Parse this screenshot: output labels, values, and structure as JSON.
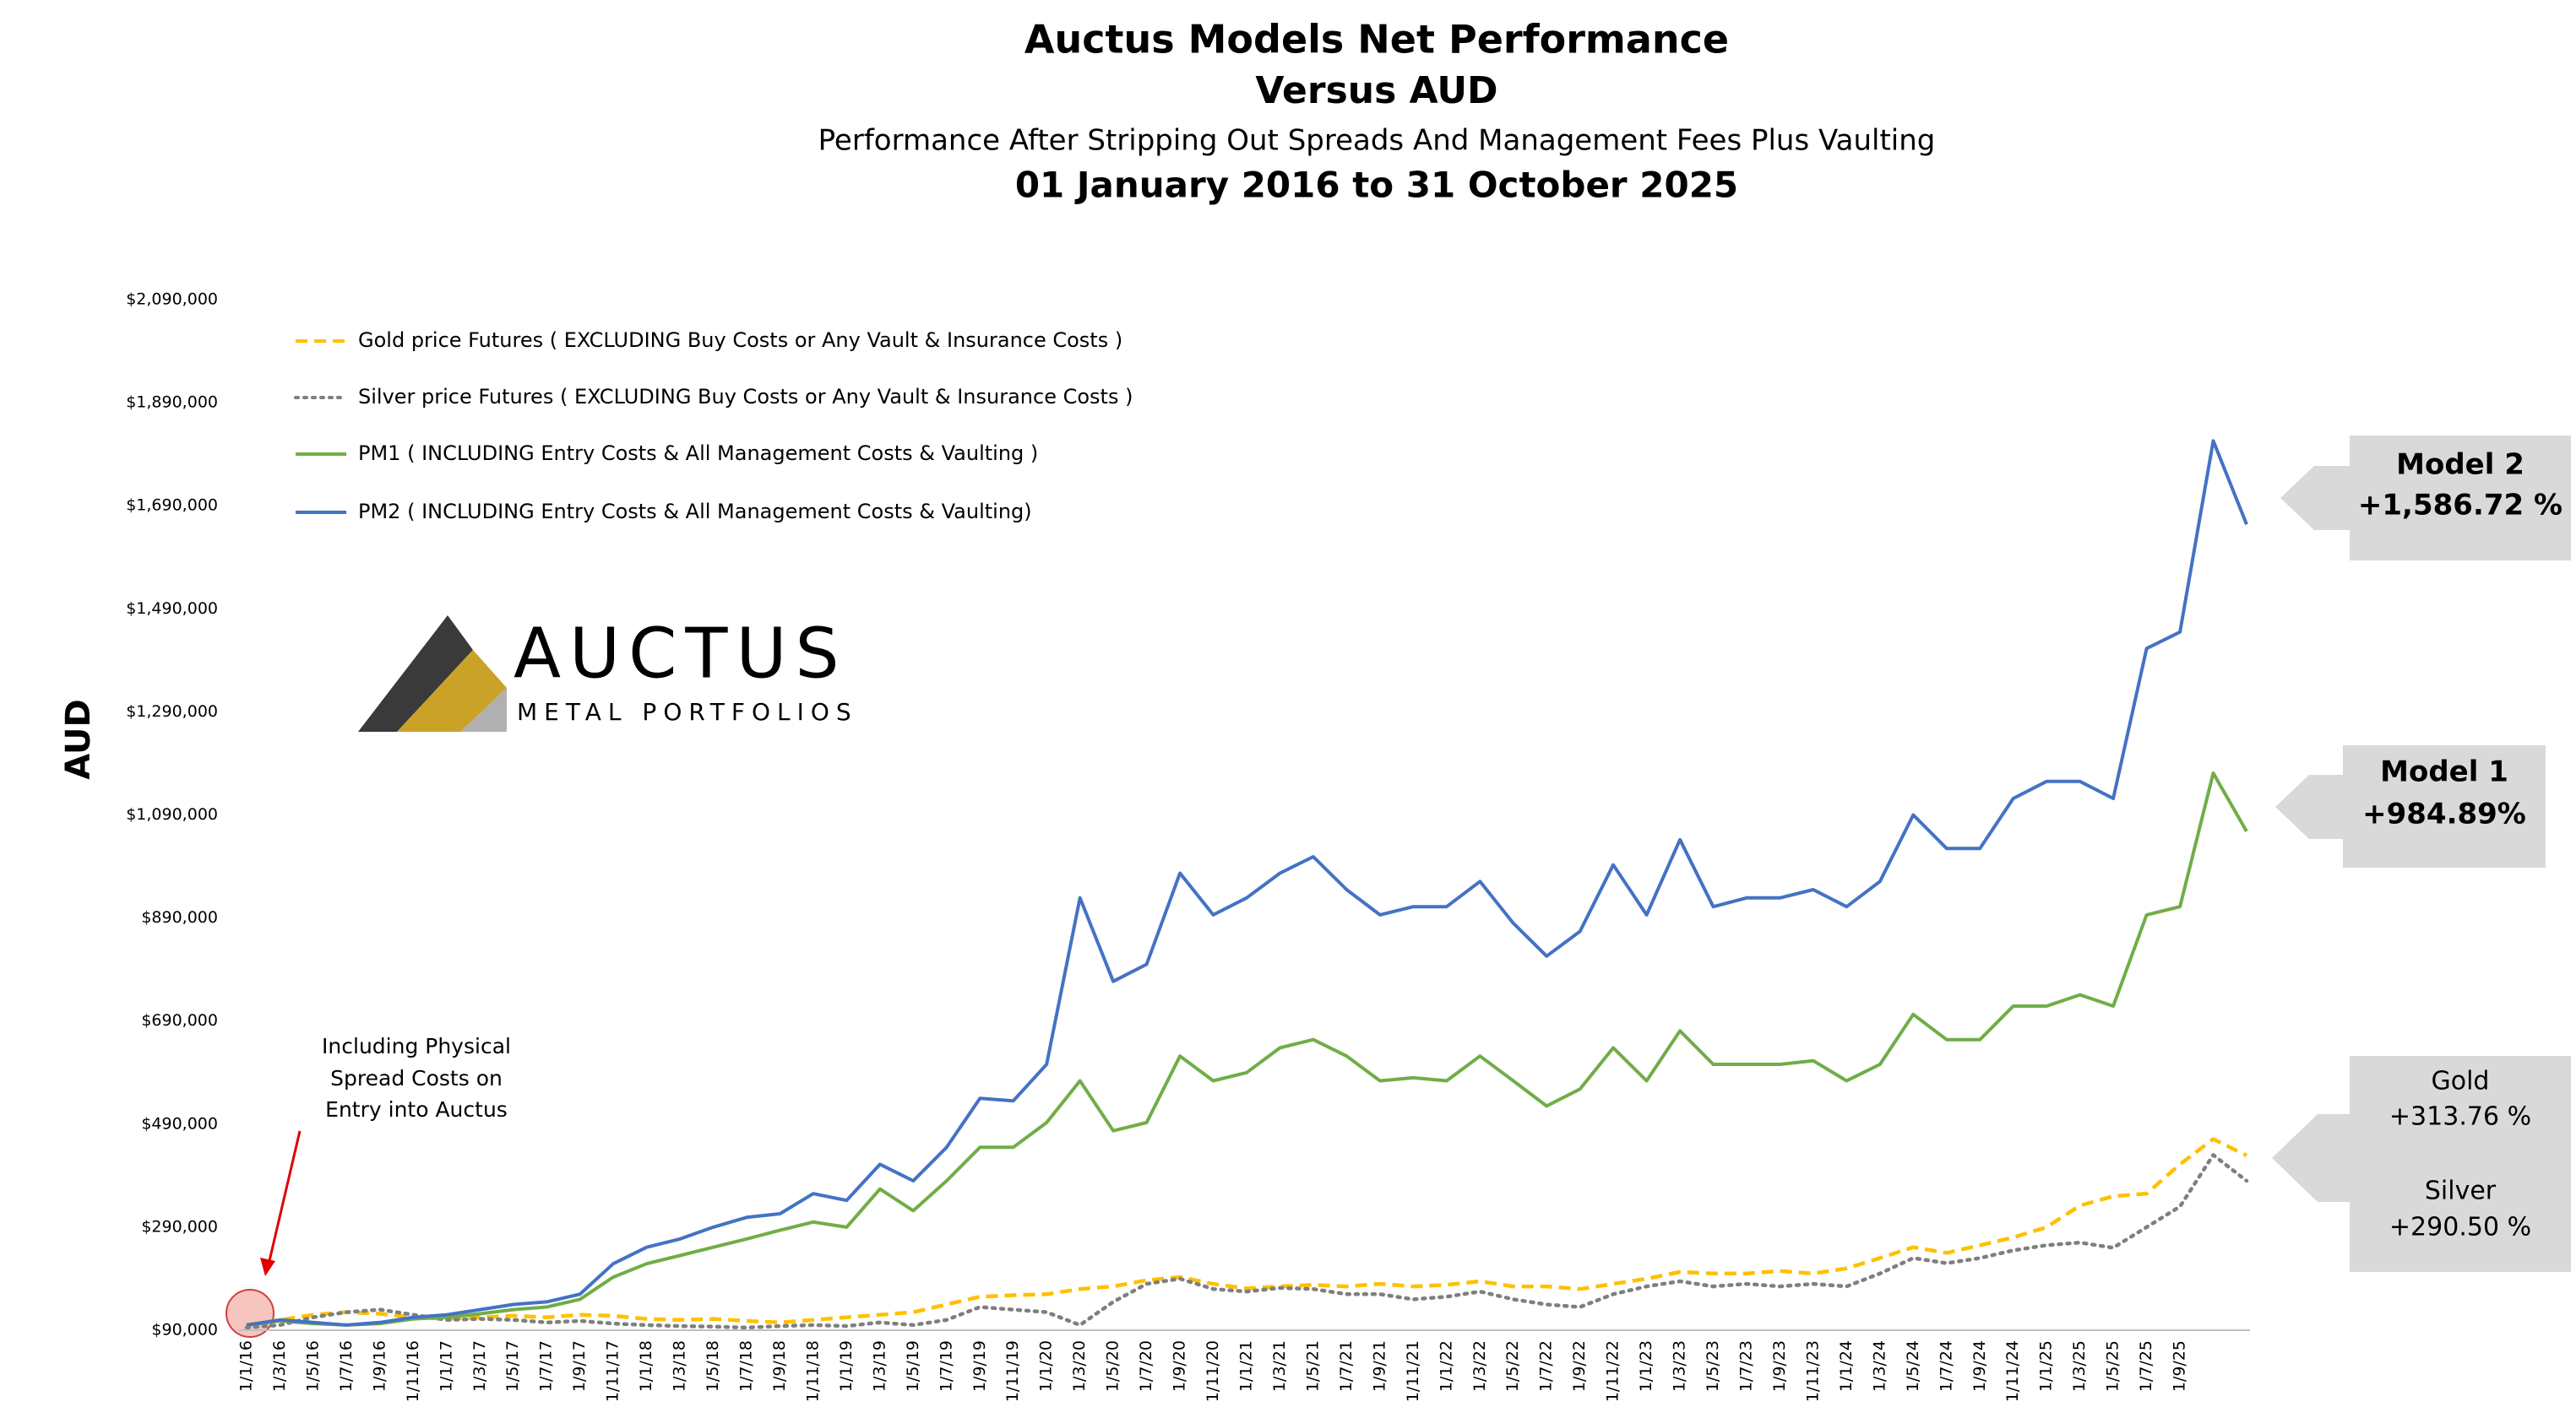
{
  "chart_data": {
    "type": "line",
    "title": "Auctus Models Net Performance",
    "subtitle_1": "Versus AUD",
    "subtitle_2": "Performance After Stripping Out Spreads And Management Fees Plus Vaulting",
    "date_range": "01 January 2016 to 31 October 2025",
    "y_label": "AUD",
    "ylim": [
      90000,
      2090000
    ],
    "yticks": [
      {
        "value": 90000,
        "label": "$90,000"
      },
      {
        "value": 290000,
        "label": "$290,000"
      },
      {
        "value": 490000,
        "label": "$490,000"
      },
      {
        "value": 690000,
        "label": "$690,000"
      },
      {
        "value": 890000,
        "label": "$890,000"
      },
      {
        "value": 1090000,
        "label": "$1,090,000"
      },
      {
        "value": 1290000,
        "label": "$1,290,000"
      },
      {
        "value": 1490000,
        "label": "$1,490,000"
      },
      {
        "value": 1690000,
        "label": "$1,690,000"
      },
      {
        "value": 1890000,
        "label": "$1,890,000"
      },
      {
        "value": 2090000,
        "label": "$2,090,000"
      }
    ],
    "grid": false,
    "categories": [
      "1/1/16",
      "1/3/16",
      "1/5/16",
      "1/7/16",
      "1/9/16",
      "1/11/16",
      "1/1/17",
      "1/3/17",
      "1/5/17",
      "1/7/17",
      "1/9/17",
      "1/11/17",
      "1/1/18",
      "1/3/18",
      "1/5/18",
      "1/7/18",
      "1/9/18",
      "1/11/18",
      "1/1/19",
      "1/3/19",
      "1/5/19",
      "1/7/19",
      "1/9/19",
      "1/11/19",
      "1/1/20",
      "1/3/20",
      "1/5/20",
      "1/7/20",
      "1/9/20",
      "1/11/20",
      "1/1/21",
      "1/3/21",
      "1/5/21",
      "1/7/21",
      "1/9/21",
      "1/11/21",
      "1/1/22",
      "1/3/22",
      "1/5/22",
      "1/7/22",
      "1/9/22",
      "1/11/22",
      "1/1/23",
      "1/3/23",
      "1/5/23",
      "1/7/23",
      "1/9/23",
      "1/11/23",
      "1/1/24",
      "1/3/24",
      "1/5/24",
      "1/7/24",
      "1/9/24",
      "1/11/24",
      "1/1/25",
      "1/3/25",
      "1/5/25",
      "1/7/25",
      "1/9/25",
      null,
      null
    ],
    "series": [
      {
        "name": "Gold price Futures ( EXCLUDING Buy Costs or Any Vault & Insurance Costs )",
        "color": "#ffc000",
        "line_style": "dashed",
        "values": [
          100000,
          110000,
          120000,
          125000,
          122000,
          115000,
          112000,
          115000,
          118000,
          115000,
          120000,
          118000,
          112000,
          110000,
          112000,
          108000,
          105000,
          110000,
          115000,
          120000,
          125000,
          140000,
          155000,
          158000,
          160000,
          170000,
          175000,
          187000,
          193000,
          180000,
          171000,
          175000,
          178000,
          175000,
          180000,
          175000,
          178000,
          185000,
          175000,
          175000,
          170000,
          180000,
          190000,
          203000,
          200000,
          200000,
          205000,
          200000,
          210000,
          230000,
          251000,
          240000,
          255000,
          270000,
          290000,
          332000,
          350000,
          355000,
          412000,
          461000,
          429000
        ]
      },
      {
        "name": "Silver price Futures ( EXCLUDING Buy Costs or Any Vault & Insurance Costs )",
        "color": "#7f7f7f",
        "line_style": "dotted",
        "values": [
          95000,
          100000,
          115000,
          125000,
          130000,
          120000,
          110000,
          112000,
          110000,
          105000,
          108000,
          103000,
          100000,
          98000,
          97000,
          95000,
          98000,
          100000,
          98000,
          105000,
          100000,
          110000,
          135000,
          130000,
          125000,
          100000,
          145000,
          180000,
          190000,
          170000,
          165000,
          172000,
          170000,
          160000,
          160000,
          150000,
          155000,
          165000,
          150000,
          140000,
          135000,
          160000,
          175000,
          185000,
          175000,
          180000,
          175000,
          180000,
          175000,
          200000,
          230000,
          220000,
          230000,
          245000,
          255000,
          260000,
          250000,
          290000,
          330000,
          430000,
          380000
        ]
      },
      {
        "name": "PM1 ( INCLUDING Entry Costs & All Management Costs & Vaulting )",
        "color": "#70ad47",
        "line_style": "solid",
        "values": [
          100000,
          108000,
          103000,
          100000,
          103000,
          112000,
          115000,
          122000,
          130000,
          135000,
          150000,
          193000,
          219000,
          235000,
          251000,
          267000,
          284000,
          300000,
          290000,
          364000,
          322000,
          380000,
          445000,
          445000,
          493000,
          574000,
          477000,
          493000,
          622000,
          574000,
          590000,
          638000,
          654000,
          622000,
          574000,
          580000,
          574000,
          622000,
          574000,
          525000,
          558000,
          638000,
          574000,
          671000,
          606000,
          606000,
          606000,
          613000,
          574000,
          606000,
          703000,
          654000,
          654000,
          719000,
          719000,
          741000,
          719000,
          896000,
          912000,
          1171000,
          1058000
        ]
      },
      {
        "name": "PM2 ( INCLUDING Entry Costs & All Management Costs & Vaulting)",
        "color": "#4472c4",
        "line_style": "solid",
        "values": [
          100000,
          110000,
          105000,
          100000,
          105000,
          115000,
          120000,
          130000,
          140000,
          145000,
          160000,
          219000,
          251000,
          267000,
          290000,
          309000,
          316000,
          355000,
          342000,
          412000,
          380000,
          445000,
          540000,
          535000,
          606000,
          929000,
          767000,
          800000,
          977000,
          896000,
          929000,
          977000,
          1009000,
          945000,
          896000,
          912000,
          912000,
          961000,
          880000,
          816000,
          864000,
          993000,
          896000,
          1042000,
          912000,
          929000,
          929000,
          945000,
          912000,
          961000,
          1090000,
          1025000,
          1025000,
          1122000,
          1155000,
          1155000,
          1122000,
          1413000,
          1445000,
          1816000,
          1654000
        ]
      }
    ],
    "annotations": [
      {
        "title": "Model 2",
        "text": "+1,586.72 %"
      },
      {
        "title": "Model 1",
        "text": "+984.89%"
      },
      {
        "title": "Gold",
        "text": "+313.76 %"
      },
      {
        "title": "Silver",
        "text": "+290.50 %"
      }
    ],
    "note": [
      "Including Physical",
      "Spread Costs on",
      "Entry into Auctus"
    ],
    "logo": {
      "name": "AUCTUS",
      "tagline": "METAL PORTFOLIOS"
    }
  }
}
